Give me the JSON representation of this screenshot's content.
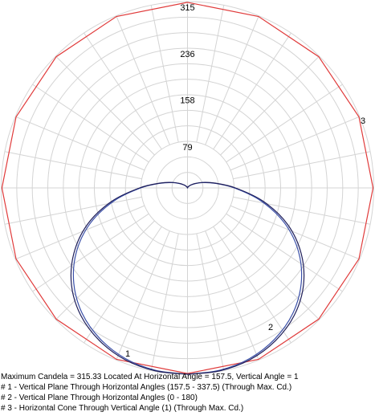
{
  "chart_data": {
    "type": "polar",
    "radial_max": 315,
    "radial_ticks": [
      79,
      158,
      236,
      315
    ],
    "radial_tick_labels": [
      "79",
      "158",
      "236",
      "315"
    ],
    "angular_divisions": 32,
    "grid": true,
    "colors": {
      "grid": "#d4d4d4",
      "curve_1": "#3a4fa8",
      "curve_2": "#1e1e5a",
      "curve_3": "#e03a3a"
    },
    "series": [
      {
        "name": "1",
        "description": "Vertical Plane Through Horizontal Angles (157.5 - 337.5) (Through Max. Cd.)",
        "angle_unit": "degrees from nadir",
        "angles": [
          0,
          10,
          20,
          30,
          40,
          50,
          60,
          70,
          80,
          90,
          100,
          110,
          120,
          130,
          140,
          150,
          160,
          170,
          180
        ],
        "values": [
          315,
          313,
          307,
          295,
          277,
          251,
          217,
          175,
          126,
          79,
          46,
          26,
          14,
          8,
          4,
          2,
          1,
          0,
          0
        ]
      },
      {
        "name": "2",
        "description": "Vertical Plane Through Horizontal Angles (0 - 180)",
        "angle_unit": "degrees from nadir",
        "angles": [
          0,
          10,
          20,
          30,
          40,
          50,
          60,
          70,
          80,
          90,
          100,
          110,
          120,
          130,
          140,
          150,
          160,
          170,
          180
        ],
        "values": [
          315,
          314,
          309,
          298,
          281,
          256,
          222,
          180,
          130,
          81,
          47,
          27,
          15,
          8,
          4,
          2,
          1,
          0,
          0
        ]
      },
      {
        "name": "3",
        "description": "Horizontal Cone Through Vertical Angle (1) (Through Max. Cd.)",
        "angle_unit": "horizontal degrees",
        "shape": "constant",
        "sides": 16,
        "value": 315.33
      }
    ]
  },
  "legend": {
    "max_line": "Maximum Candela = 315.33   Located At Horizontal Angle = 157.5, Vertical Angle = 1",
    "line_1": "# 1 - Vertical Plane Through Horizontal Angles (157.5 - 337.5) (Through Max. Cd.)",
    "line_2": "# 2 - Vertical Plane Through Horizontal Angles (0 - 180)",
    "line_3": "# 3 - Horizontal Cone Through Vertical Angle (1) (Through Max. Cd.)"
  }
}
